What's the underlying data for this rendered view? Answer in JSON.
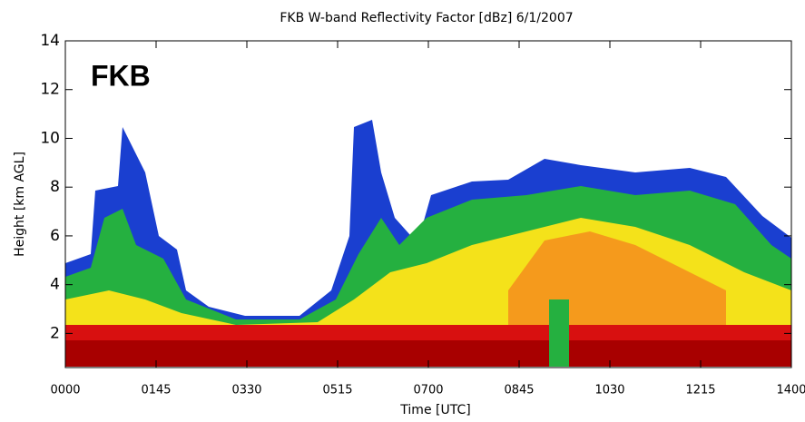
{
  "chart_data": {
    "type": "heatmap",
    "title": "FKB W-band Reflectivity Factor [dBz]   6/1/2007",
    "annotation": "FKB",
    "xlabel": "Time [UTC]",
    "ylabel": "Height [km AGL]",
    "xlim": [
      0,
      840
    ],
    "xticks": [
      {
        "value": 0,
        "label": "0000"
      },
      {
        "value": 105,
        "label": "0145"
      },
      {
        "value": 210,
        "label": "0330"
      },
      {
        "value": 315,
        "label": "0515"
      },
      {
        "value": 420,
        "label": "0700"
      },
      {
        "value": 525,
        "label": "0845"
      },
      {
        "value": 630,
        "label": "1030"
      },
      {
        "value": 735,
        "label": "1215"
      },
      {
        "value": 840,
        "label": "1400"
      }
    ],
    "ylim": [
      0.6,
      14
    ],
    "yticks": [
      2,
      4,
      6,
      8,
      10,
      12,
      14
    ]
  }
}
